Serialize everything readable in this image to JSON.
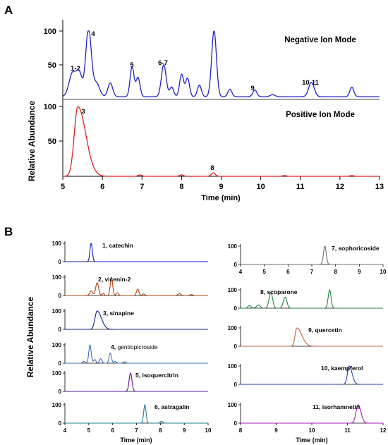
{
  "panelA": {
    "label": "A",
    "ylabel": "Relative Abundance",
    "xlabel": "Time (min)",
    "xticks": [
      "5",
      "6",
      "7",
      "8",
      "9",
      "10",
      "11",
      "12",
      "13"
    ],
    "negative": {
      "mode_label": "Negative Ion Mode",
      "yticks": [
        "100",
        "50"
      ],
      "peak_labels": [
        "1-2",
        "4",
        "5",
        "6-7",
        "9",
        "10-11"
      ]
    },
    "positive": {
      "mode_label": "Positive Ion Mode",
      "yticks": [
        "100",
        "50"
      ],
      "peak_labels": [
        "3",
        "8"
      ]
    }
  },
  "panelB": {
    "label": "B",
    "ylabel": "Relative Abundance",
    "xlabel_left": "Time  (min)",
    "xlabel_right": "Time  (min)",
    "left_xticks": [
      "4",
      "5",
      "6",
      "7",
      "8",
      "9",
      "10"
    ],
    "right_xticks": [
      "8",
      "9",
      "10",
      "11",
      "12"
    ],
    "sophoricoside_xticks": [
      "4",
      "5",
      "6",
      "7",
      "8",
      "9",
      "10"
    ],
    "ytick_100": "100",
    "ytick_0": "0",
    "compounds": [
      {
        "num": "1,",
        "name": "catechin"
      },
      {
        "num": "2,",
        "name": "vicenin-2"
      },
      {
        "num": "3,",
        "name": "sinapine"
      },
      {
        "num": "4,",
        "name": "gentiopicroside"
      },
      {
        "num": "5,",
        "name": "isoquercitrin"
      },
      {
        "num": "6,",
        "name": "astragalin"
      },
      {
        "num": "7,",
        "name": "sophoricoside"
      },
      {
        "num": "8,",
        "name": "scoparone"
      },
      {
        "num": "9,",
        "name": "quercetin"
      },
      {
        "num": "10,",
        "name": "kaempferol"
      },
      {
        "num": "11,",
        "name": "isorhamnetin"
      }
    ]
  },
  "chart_data": [
    {
      "type": "line",
      "panel": "A",
      "title": "Negative Ion Mode",
      "xlabel": "Time (min)",
      "ylabel": "Relative Abundance",
      "xlim": [
        5,
        13
      ],
      "ylim": [
        0,
        100
      ],
      "color": "#2020c8",
      "peaks": [
        {
          "x": 5.25,
          "y": 35,
          "w": 0.09
        },
        {
          "x": 5.42,
          "y": 32,
          "w": 0.07
        },
        {
          "x": 5.65,
          "y": 100,
          "w": 0.07
        },
        {
          "x": 5.85,
          "y": 20,
          "w": 0.08
        },
        {
          "x": 6.2,
          "y": 20,
          "w": 0.06
        },
        {
          "x": 6.75,
          "y": 44,
          "w": 0.05
        },
        {
          "x": 6.9,
          "y": 28,
          "w": 0.05
        },
        {
          "x": 7.55,
          "y": 47,
          "w": 0.06
        },
        {
          "x": 7.75,
          "y": 14,
          "w": 0.05
        },
        {
          "x": 8.0,
          "y": 33,
          "w": 0.05
        },
        {
          "x": 8.15,
          "y": 27,
          "w": 0.05
        },
        {
          "x": 8.45,
          "y": 17,
          "w": 0.05
        },
        {
          "x": 8.82,
          "y": 97,
          "w": 0.06
        },
        {
          "x": 9.22,
          "y": 11,
          "w": 0.05
        },
        {
          "x": 9.85,
          "y": 10,
          "w": 0.05
        },
        {
          "x": 10.3,
          "y": 3,
          "w": 0.06
        },
        {
          "x": 11.28,
          "y": 21,
          "w": 0.07
        },
        {
          "x": 12.3,
          "y": 14,
          "w": 0.05
        }
      ],
      "baseline": 4
    },
    {
      "type": "line",
      "panel": "A",
      "title": "Positive Ion Mode",
      "xlabel": "Time (min)",
      "ylabel": "Relative Abundance",
      "xlim": [
        5,
        13
      ],
      "ylim": [
        0,
        100
      ],
      "color": "#e02020",
      "peaks": [
        {
          "x": 5.38,
          "y": 100,
          "w": 0.09,
          "tail": 0.2
        },
        {
          "x": 6.95,
          "y": 2,
          "w": 0.05
        },
        {
          "x": 8.0,
          "y": 2,
          "w": 0.05
        },
        {
          "x": 8.8,
          "y": 5,
          "w": 0.05
        },
        {
          "x": 10.6,
          "y": 1,
          "w": 0.05
        },
        {
          "x": 12.3,
          "y": 1,
          "w": 0.05
        }
      ],
      "baseline": 0
    },
    {
      "type": "line",
      "panel": "B",
      "title": "1, catechin",
      "xlim": [
        4,
        10
      ],
      "ylim": [
        0,
        100
      ],
      "color": "#1020b0",
      "peaks": [
        {
          "x": 5.1,
          "y": 100,
          "w": 0.05
        }
      ]
    },
    {
      "type": "line",
      "panel": "B",
      "title": "2, vicenin-2",
      "xlim": [
        4,
        10
      ],
      "ylim": [
        0,
        100
      ],
      "color": "#b04010",
      "peaks": [
        {
          "x": 5.1,
          "y": 25,
          "w": 0.06
        },
        {
          "x": 5.35,
          "y": 70,
          "w": 0.06
        },
        {
          "x": 5.6,
          "y": 10,
          "w": 0.05
        },
        {
          "x": 5.95,
          "y": 100,
          "w": 0.05
        },
        {
          "x": 6.2,
          "y": 15,
          "w": 0.05
        },
        {
          "x": 7.05,
          "y": 35,
          "w": 0.05
        },
        {
          "x": 7.3,
          "y": 8,
          "w": 0.05
        },
        {
          "x": 8.8,
          "y": 10,
          "w": 0.06
        },
        {
          "x": 9.3,
          "y": 5,
          "w": 0.06
        }
      ]
    },
    {
      "type": "line",
      "panel": "B",
      "title": "3, sinapine",
      "xlim": [
        4,
        10
      ],
      "ylim": [
        0,
        100
      ],
      "color": "#102080",
      "peaks": [
        {
          "x": 5.35,
          "y": 100,
          "w": 0.09,
          "tail": 0.18
        }
      ]
    },
    {
      "type": "line",
      "panel": "B",
      "title": "4, gentiopicroside",
      "xlim": [
        4,
        10
      ],
      "ylim": [
        0,
        100
      ],
      "color": "#4070c0",
      "peaks": [
        {
          "x": 4.8,
          "y": 10,
          "w": 0.05
        },
        {
          "x": 5.05,
          "y": 100,
          "w": 0.05
        },
        {
          "x": 5.25,
          "y": 20,
          "w": 0.05
        },
        {
          "x": 5.5,
          "y": 25,
          "w": 0.05
        },
        {
          "x": 5.9,
          "y": 55,
          "w": 0.05
        },
        {
          "x": 6.1,
          "y": 10,
          "w": 0.05
        },
        {
          "x": 6.5,
          "y": 8,
          "w": 0.05
        }
      ]
    },
    {
      "type": "line",
      "panel": "B",
      "title": "5, isoquercitrin",
      "xlim": [
        4,
        10
      ],
      "ylim": [
        0,
        100
      ],
      "color": "#6010a0",
      "peaks": [
        {
          "x": 6.75,
          "y": 100,
          "w": 0.06
        }
      ]
    },
    {
      "type": "line",
      "panel": "B",
      "title": "6, astragalin",
      "xlim": [
        4,
        10
      ],
      "ylim": [
        0,
        100
      ],
      "color": "#208090",
      "peaks": [
        {
          "x": 7.35,
          "y": 100,
          "w": 0.05
        },
        {
          "x": 8.05,
          "y": 10,
          "w": 0.05
        }
      ]
    },
    {
      "type": "line",
      "panel": "B",
      "title": "7, sophoricoside",
      "xlim": [
        4,
        10
      ],
      "ylim": [
        0,
        100
      ],
      "color": "#707070",
      "peaks": [
        {
          "x": 7.55,
          "y": 100,
          "w": 0.06
        }
      ]
    },
    {
      "type": "line",
      "panel": "B",
      "title": "8, scoparone",
      "xlim": [
        8,
        12
      ],
      "ylim": [
        0,
        100
      ],
      "color": "#208040",
      "peaks": [
        {
          "x": 8.25,
          "y": 15,
          "w": 0.04
        },
        {
          "x": 8.5,
          "y": 18,
          "w": 0.05
        },
        {
          "x": 8.85,
          "y": 85,
          "w": 0.05
        },
        {
          "x": 9.25,
          "y": 60,
          "w": 0.05
        },
        {
          "x": 10.5,
          "y": 100,
          "w": 0.04
        }
      ]
    },
    {
      "type": "line",
      "panel": "B",
      "title": "9, quercetin",
      "xlim": [
        8,
        12
      ],
      "ylim": [
        0,
        100
      ],
      "color": "#c06040",
      "peaks": [
        {
          "x": 9.58,
          "y": 100,
          "w": 0.05,
          "tail": 0.14
        }
      ]
    },
    {
      "type": "line",
      "panel": "B",
      "title": "10, kaempferol",
      "xlim": [
        8,
        12
      ],
      "ylim": [
        0,
        100
      ],
      "color": "#2040a0",
      "peaks": [
        {
          "x": 11.05,
          "y": 100,
          "w": 0.05,
          "tail": 0.08
        }
      ]
    },
    {
      "type": "line",
      "panel": "B",
      "title": "11, isorhamnetin",
      "xlim": [
        8,
        12
      ],
      "ylim": [
        0,
        100
      ],
      "color": "#a020b0",
      "peaks": [
        {
          "x": 11.3,
          "y": 100,
          "w": 0.06,
          "tail": 0.08
        }
      ]
    }
  ]
}
